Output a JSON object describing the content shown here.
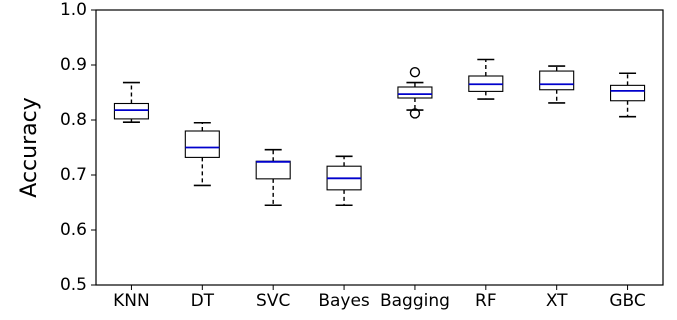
{
  "chart_data": {
    "type": "box",
    "ylabel": "Accuracy",
    "ylim": [
      0.5,
      1.0
    ],
    "yticks": [
      "0.5",
      "0.6",
      "0.7",
      "0.8",
      "0.9",
      "1.0"
    ],
    "categories": [
      "KNN",
      "DT",
      "SVC",
      "Bayes",
      "Bagging",
      "RF",
      "XT",
      "GBC"
    ],
    "boxes": [
      {
        "category": "KNN",
        "whisker_low": 0.796,
        "q1": 0.802,
        "median": 0.818,
        "q3": 0.83,
        "whisker_high": 0.868,
        "outliers": []
      },
      {
        "category": "DT",
        "whisker_low": 0.681,
        "q1": 0.732,
        "median": 0.75,
        "q3": 0.78,
        "whisker_high": 0.795,
        "outliers": []
      },
      {
        "category": "SVC",
        "whisker_low": 0.645,
        "q1": 0.693,
        "median": 0.724,
        "q3": 0.725,
        "whisker_high": 0.746,
        "outliers": []
      },
      {
        "category": "Bayes",
        "whisker_low": 0.645,
        "q1": 0.673,
        "median": 0.694,
        "q3": 0.716,
        "whisker_high": 0.734,
        "outliers": []
      },
      {
        "category": "Bagging",
        "whisker_low": 0.818,
        "q1": 0.84,
        "median": 0.847,
        "q3": 0.86,
        "whisker_high": 0.868,
        "outliers": [
          0.887,
          0.812
        ]
      },
      {
        "category": "RF",
        "whisker_low": 0.838,
        "q1": 0.852,
        "median": 0.865,
        "q3": 0.88,
        "whisker_high": 0.91,
        "outliers": []
      },
      {
        "category": "XT",
        "whisker_low": 0.831,
        "q1": 0.855,
        "median": 0.865,
        "q3": 0.889,
        "whisker_high": 0.898,
        "outliers": []
      },
      {
        "category": "GBC",
        "whisker_low": 0.806,
        "q1": 0.835,
        "median": 0.853,
        "q3": 0.863,
        "whisker_high": 0.885,
        "outliers": []
      }
    ],
    "colors": {
      "median": "#0000cc",
      "box": "#000000",
      "background": "#ffffff"
    },
    "grid": false,
    "legend": "none"
  }
}
